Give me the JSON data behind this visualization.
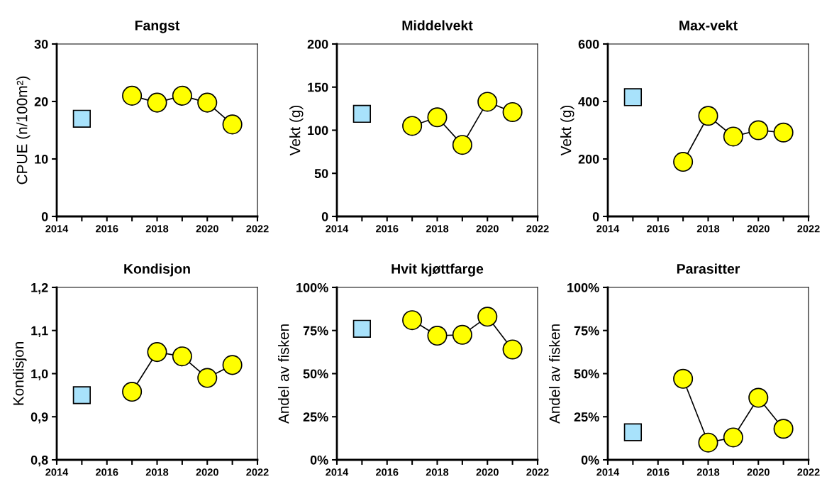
{
  "chart_data": [
    {
      "type": "line",
      "title": "Fangst",
      "ylabel": "CPUE (n/100m²)",
      "xlim": [
        2014,
        2022
      ],
      "xticks": [
        2014,
        {
          "value": 2015,
          "label": null
        },
        2016,
        {
          "value": 2017,
          "label": null
        },
        2018,
        {
          "value": 2019,
          "label": null
        },
        2020,
        {
          "value": 2021,
          "label": null
        },
        2022
      ],
      "ylim": [
        0,
        30
      ],
      "yticks": [
        0,
        10,
        20,
        30
      ],
      "grid": false,
      "series": [
        {
          "type": "scatter",
          "marker": "square",
          "color": "#a8e2fb",
          "x": [
            2015
          ],
          "values": [
            17
          ]
        },
        {
          "marker": "circle",
          "color": "#ffff00",
          "x": [
            2017,
            2018,
            2019,
            2020,
            2021
          ],
          "values": [
            21,
            19.8,
            21,
            19.8,
            16
          ]
        }
      ]
    },
    {
      "type": "line",
      "title": "Middelvekt",
      "ylabel": "Vekt (g)",
      "xlim": [
        2014,
        2022
      ],
      "xticks": [
        2014,
        {
          "value": 2015,
          "label": null
        },
        2016,
        {
          "value": 2017,
          "label": null
        },
        2018,
        {
          "value": 2019,
          "label": null
        },
        2020,
        {
          "value": 2021,
          "label": null
        },
        2022
      ],
      "ylim": [
        0,
        200
      ],
      "yticks": [
        0,
        50,
        100,
        150,
        200
      ],
      "grid": false,
      "series": [
        {
          "type": "scatter",
          "marker": "square",
          "color": "#a8e2fb",
          "x": [
            2015
          ],
          "values": [
            119
          ]
        },
        {
          "marker": "circle",
          "color": "#ffff00",
          "x": [
            2017,
            2018,
            2019,
            2020,
            2021
          ],
          "values": [
            105,
            115,
            83,
            133,
            121
          ]
        }
      ]
    },
    {
      "type": "line",
      "title": "Max-vekt",
      "ylabel": "Vekt (g)",
      "xlim": [
        2014,
        2022
      ],
      "xticks": [
        2014,
        {
          "value": 2015,
          "label": null
        },
        2016,
        {
          "value": 2017,
          "label": null
        },
        2018,
        {
          "value": 2019,
          "label": null
        },
        2020,
        {
          "value": 2021,
          "label": null
        },
        2022
      ],
      "ylim": [
        0,
        600
      ],
      "yticks": [
        0,
        200,
        400,
        600
      ],
      "grid": false,
      "series": [
        {
          "type": "scatter",
          "marker": "square",
          "color": "#a8e2fb",
          "x": [
            2015
          ],
          "values": [
            415
          ]
        },
        {
          "marker": "circle",
          "color": "#ffff00",
          "x": [
            2017,
            2018,
            2019,
            2020,
            2021
          ],
          "values": [
            190,
            350,
            278,
            300,
            292
          ]
        }
      ]
    },
    {
      "type": "line",
      "title": "Kondisjon",
      "ylabel": "Kondisjon",
      "xlim": [
        2014,
        2022
      ],
      "xticks": [
        2014,
        {
          "value": 2015,
          "label": null
        },
        2016,
        {
          "value": 2017,
          "label": null
        },
        2018,
        {
          "value": 2019,
          "label": null
        },
        2020,
        {
          "value": 2021,
          "label": null
        },
        2022
      ],
      "ylim": [
        0.8,
        1.2
      ],
      "yticks": [
        {
          "value": 0.8,
          "label": "0,8"
        },
        {
          "value": 0.9,
          "label": "0,9"
        },
        {
          "value": 1.0,
          "label": "1,0"
        },
        {
          "value": 1.1,
          "label": "1,1"
        },
        {
          "value": 1.2,
          "label": "1,2"
        }
      ],
      "grid": false,
      "series": [
        {
          "type": "scatter",
          "marker": "square",
          "color": "#a8e2fb",
          "x": [
            2015
          ],
          "values": [
            0.95
          ]
        },
        {
          "marker": "circle",
          "color": "#ffff00",
          "x": [
            2017,
            2018,
            2019,
            2020,
            2021
          ],
          "values": [
            0.958,
            1.05,
            1.04,
            0.99,
            1.02
          ]
        }
      ]
    },
    {
      "type": "line",
      "title": "Hvit kjøttfarge",
      "ylabel": "Andel av fisken",
      "xlim": [
        2014,
        2022
      ],
      "xticks": [
        2014,
        {
          "value": 2015,
          "label": null
        },
        2016,
        {
          "value": 2017,
          "label": null
        },
        2018,
        {
          "value": 2019,
          "label": null
        },
        2020,
        {
          "value": 2021,
          "label": null
        },
        2022
      ],
      "ylim": [
        0,
        100
      ],
      "yticks": [
        {
          "value": 0,
          "label": "0%"
        },
        {
          "value": 25,
          "label": "25%"
        },
        {
          "value": 50,
          "label": "50%"
        },
        {
          "value": 75,
          "label": "75%"
        },
        {
          "value": 100,
          "label": "100%"
        }
      ],
      "grid": false,
      "series": [
        {
          "type": "scatter",
          "marker": "square",
          "color": "#a8e2fb",
          "x": [
            2015
          ],
          "values": [
            76
          ]
        },
        {
          "marker": "circle",
          "color": "#ffff00",
          "x": [
            2017,
            2018,
            2019,
            2020,
            2021
          ],
          "values": [
            81,
            72,
            72.5,
            83,
            64
          ]
        }
      ]
    },
    {
      "type": "line",
      "title": "Parasitter",
      "ylabel": "Andel av fisken",
      "xlim": [
        2014,
        2022
      ],
      "xticks": [
        2014,
        {
          "value": 2015,
          "label": null
        },
        2016,
        {
          "value": 2017,
          "label": null
        },
        2018,
        {
          "value": 2019,
          "label": null
        },
        2020,
        {
          "value": 2021,
          "label": null
        },
        2022
      ],
      "ylim": [
        0,
        100
      ],
      "yticks": [
        {
          "value": 0,
          "label": "0%"
        },
        {
          "value": 25,
          "label": "25%"
        },
        {
          "value": 50,
          "label": "50%"
        },
        {
          "value": 75,
          "label": "75%"
        },
        {
          "value": 100,
          "label": "100%"
        }
      ],
      "grid": false,
      "series": [
        {
          "type": "scatter",
          "marker": "square",
          "color": "#a8e2fb",
          "x": [
            2015
          ],
          "values": [
            16
          ]
        },
        {
          "marker": "circle",
          "color": "#ffff00",
          "x": [
            2017,
            2018,
            2019,
            2020,
            2021
          ],
          "values": [
            47,
            10,
            13,
            36,
            18
          ]
        }
      ]
    }
  ]
}
